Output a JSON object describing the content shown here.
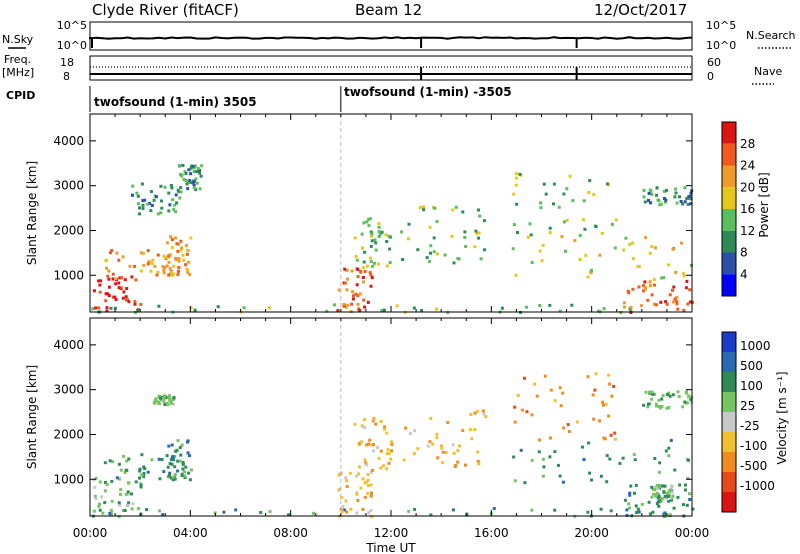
{
  "header": {
    "title": "Clyde River (fitACF)",
    "beam": "Beam 12",
    "date": "12/Oct/2017"
  },
  "top_panels": {
    "nsky": {
      "left_label": "N.Sky",
      "right_label": "N.Search",
      "left_ticks": [
        "10^5",
        "10^0"
      ],
      "right_ticks": [
        "10^5",
        "10^0"
      ]
    },
    "freq": {
      "left_label_1": "Freq.",
      "left_label_2": "[MHz]",
      "left_ticks": [
        "18",
        "8"
      ],
      "right_ticks": [
        "60",
        "0"
      ],
      "right_label": "Nave"
    },
    "cpid": {
      "label": "CPID",
      "segments": [
        "twofsound (1-min) 3505",
        "twofsound (1-min) -3505"
      ]
    }
  },
  "power_panel": {
    "ylabel": "Slant Range [km]",
    "yticks": [
      "1000",
      "2000",
      "3000",
      "4000"
    ],
    "colorbar_label": "Power [dB]",
    "colorbar_ticks": [
      "4",
      "8",
      "12",
      "16",
      "20",
      "24",
      "28"
    ],
    "colorbar_colors": [
      "#0000ff",
      "#2a50a8",
      "#2e8b57",
      "#5abf5a",
      "#e6c619",
      "#f09a28",
      "#f05a1e",
      "#dc1414"
    ]
  },
  "velocity_panel": {
    "ylabel": "Slant Range [km]",
    "yticks": [
      "1000",
      "2000",
      "3000",
      "4000"
    ],
    "colorbar_label": "Velocity [m s⁻¹]",
    "colorbar_ticks": [
      "1000",
      "500",
      "100",
      "25",
      "-25",
      "-100",
      "-500",
      "-1000"
    ],
    "colorbar_colors": [
      "#1a3cc8",
      "#2a6ab0",
      "#2e8b57",
      "#74c462",
      "#c8c8c8",
      "#f0c030",
      "#f08c1e",
      "#e84a1a",
      "#dc1414"
    ]
  },
  "xaxis": {
    "label": "Time UT",
    "ticks": [
      "00:00",
      "04:00",
      "08:00",
      "12:00",
      "16:00",
      "20:00",
      "00:00"
    ]
  },
  "chart_data": {
    "type": "heatmap",
    "title": "Clyde River (fitACF)",
    "xlabel": "Time UT",
    "ylabel": "Slant Range [km]",
    "xlim_hours": [
      0,
      24
    ],
    "ylim_km": [
      180,
      4600
    ],
    "power_regions": [
      {
        "t0": 0.1,
        "t1": 2.0,
        "r0": 200,
        "r1": 1000,
        "level": 28
      },
      {
        "t0": 0.5,
        "t1": 3.5,
        "r0": 900,
        "r1": 1600,
        "level": 20
      },
      {
        "t0": 3.0,
        "t1": 4.0,
        "r0": 1000,
        "r1": 1900,
        "level": 20
      },
      {
        "t0": 1.6,
        "t1": 3.6,
        "r0": 2400,
        "r1": 3100,
        "level": 8
      },
      {
        "t0": 3.5,
        "t1": 4.4,
        "r0": 2800,
        "r1": 3500,
        "level": 8
      },
      {
        "t0": 0,
        "t1": 24,
        "r0": 200,
        "r1": 380,
        "level": 12
      },
      {
        "t0": 9.8,
        "t1": 11.2,
        "r0": 200,
        "r1": 1200,
        "level": 24
      },
      {
        "t0": 10.5,
        "t1": 12.0,
        "r0": 1200,
        "r1": 2400,
        "level": 12
      },
      {
        "t0": 12.2,
        "t1": 15.8,
        "r0": 1300,
        "r1": 2600,
        "level": 12
      },
      {
        "t0": 16.8,
        "t1": 21.0,
        "r0": 1900,
        "r1": 3400,
        "level": 12
      },
      {
        "t0": 16.8,
        "t1": 24.0,
        "r0": 900,
        "r1": 1900,
        "level": 16
      },
      {
        "t0": 21.2,
        "t1": 24.0,
        "r0": 200,
        "r1": 900,
        "level": 24
      },
      {
        "t0": 22.0,
        "t1": 24.0,
        "r0": 2600,
        "r1": 3000,
        "level": 8
      }
    ],
    "velocity_regions": [
      {
        "t0": 0.1,
        "t1": 2.0,
        "r0": 200,
        "r1": 1100,
        "level": 25
      },
      {
        "t0": 0.5,
        "t1": 3.5,
        "r0": 900,
        "r1": 1600,
        "level": 100
      },
      {
        "t0": 3.0,
        "t1": 4.0,
        "r0": 1000,
        "r1": 1900,
        "level": 100
      },
      {
        "t0": 2.5,
        "t1": 3.3,
        "r0": 2700,
        "r1": 2900,
        "level": 25
      },
      {
        "t0": 0,
        "t1": 24,
        "r0": 200,
        "r1": 380,
        "level": 100
      },
      {
        "t0": 9.8,
        "t1": 11.2,
        "r0": 200,
        "r1": 1200,
        "level": -100
      },
      {
        "t0": 10.5,
        "t1": 12.0,
        "r0": 1200,
        "r1": 2400,
        "level": -100
      },
      {
        "t0": 12.2,
        "t1": 15.8,
        "r0": 1300,
        "r1": 2600,
        "level": -100
      },
      {
        "t0": 16.8,
        "t1": 21.0,
        "r0": 1900,
        "r1": 3400,
        "level": -500
      },
      {
        "t0": 16.8,
        "t1": 24.0,
        "r0": 900,
        "r1": 1900,
        "level": 100
      },
      {
        "t0": 21.2,
        "t1": 24.0,
        "r0": 200,
        "r1": 900,
        "level": 100
      },
      {
        "t0": 22.3,
        "t1": 23.2,
        "r0": 600,
        "r1": 900,
        "level": 25
      },
      {
        "t0": 22.0,
        "t1": 24.0,
        "r0": 2600,
        "r1": 3000,
        "level": 25
      }
    ],
    "cpid_change_hour": 10.0,
    "nave_marker_hours": [
      13.2,
      19.4
    ]
  }
}
